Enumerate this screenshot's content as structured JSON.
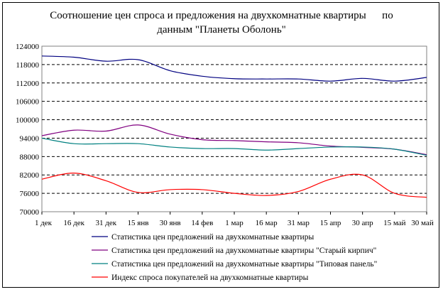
{
  "chart_data": {
    "type": "line",
    "title": "Соотношение цен спроса и предложения на двухкомнатные квартиры      по",
    "subtitle": "данным \"Планеты Оболонь\"",
    "xlabel": "",
    "ylabel": "",
    "categories": [
      "1 дек",
      "16 дек",
      "31 дек",
      "15 янв",
      "30 янв",
      "14 фев",
      "1 мар",
      "16 мар",
      "31 мар",
      "15 апр",
      "30 апр",
      "15 май",
      "30 май"
    ],
    "yticks": [
      124000,
      118000,
      112000,
      106000,
      100000,
      94000,
      88000,
      82000,
      76000,
      70000
    ],
    "ylim": [
      70000,
      124000
    ],
    "grid": "horizontal dashed",
    "legend_position": "bottom",
    "series": [
      {
        "name": "Статистика цен предложений на двухкомнатные квартиры",
        "color": "#000080",
        "values": [
          120800,
          120400,
          119100,
          119600,
          116000,
          114200,
          113400,
          113300,
          113300,
          112600,
          113500,
          112600,
          113800
        ]
      },
      {
        "name": "Статистика цен предложений на двухкомнатные квартиры \"Старый кирпич\"",
        "color": "#800080",
        "values": [
          94800,
          96600,
          96300,
          98300,
          95300,
          93500,
          93200,
          92800,
          92500,
          91400,
          91000,
          90400,
          88600
        ]
      },
      {
        "name": "Статистика цен предложений на двухкомнатные квартиры \"Типовая панель\"",
        "color": "#008080",
        "values": [
          94000,
          92200,
          92200,
          92200,
          91100,
          90600,
          90600,
          90100,
          90600,
          91100,
          91100,
          90400,
          88400
        ]
      },
      {
        "name": "Индекс спроса покупателей на двухкомнатные квартиры",
        "color": "#ff0000",
        "values": [
          80600,
          82600,
          80100,
          76300,
          77200,
          77200,
          76000,
          75300,
          76600,
          80600,
          82000,
          76000,
          74700
        ]
      }
    ]
  }
}
